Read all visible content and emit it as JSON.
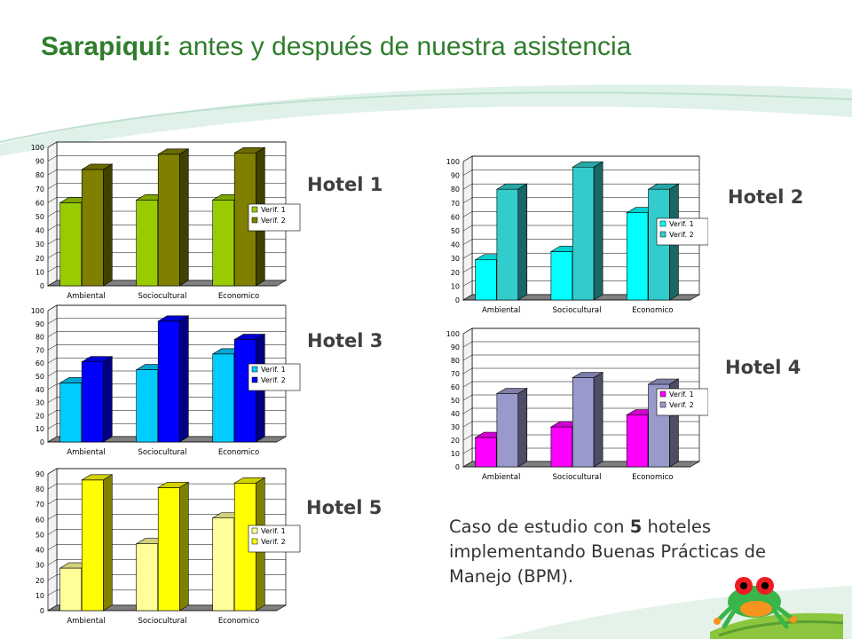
{
  "slide": {
    "title_strong": "Sarapiquí:",
    "title_rest": " antes y después de nuestra asistencia",
    "caption_prefix": "Caso de estudio con ",
    "caption_number": "5",
    "caption_suffix": " hoteles implementando Buenas Prácticas de Manejo (BPM)."
  },
  "chart_data": [
    {
      "id": "hotel1",
      "type": "bar",
      "label": "Hotel 1",
      "categories": [
        "Ambiental",
        "Sociocultural",
        "Economico"
      ],
      "ylim": [
        0,
        100
      ],
      "ystep": 10,
      "grid": true,
      "legend": "right",
      "series": [
        {
          "name": "Verif. 1",
          "values": [
            60,
            62,
            62
          ],
          "color": "#99cc00"
        },
        {
          "name": "Verif. 2",
          "values": [
            84,
            95,
            96
          ],
          "color": "#808000"
        }
      ]
    },
    {
      "id": "hotel2",
      "type": "bar",
      "label": "Hotel 2",
      "categories": [
        "Ambiental",
        "Sociocultural",
        "Economico"
      ],
      "ylim": [
        0,
        100
      ],
      "ystep": 10,
      "grid": true,
      "legend": "right",
      "series": [
        {
          "name": "Verif. 1",
          "values": [
            29,
            35,
            63
          ],
          "color": "#00ffff"
        },
        {
          "name": "Verif. 2",
          "values": [
            80,
            96,
            80
          ],
          "color": "#33cccc"
        }
      ]
    },
    {
      "id": "hotel3",
      "type": "bar",
      "label": "Hotel 3",
      "categories": [
        "Ambiental",
        "Sociocultural",
        "Economico"
      ],
      "ylim": [
        0,
        100
      ],
      "ystep": 10,
      "grid": true,
      "legend": "right",
      "series": [
        {
          "name": "Verif. 1",
          "values": [
            45,
            55,
            67
          ],
          "color": "#00ccff"
        },
        {
          "name": "Verif. 2",
          "values": [
            61,
            92,
            78
          ],
          "color": "#0000ff"
        }
      ]
    },
    {
      "id": "hotel4",
      "type": "bar",
      "label": "Hotel 4",
      "categories": [
        "Ambiental",
        "Sociocultural",
        "Economico"
      ],
      "ylim": [
        0,
        100
      ],
      "ystep": 10,
      "grid": true,
      "legend": "right",
      "series": [
        {
          "name": "Verif. 1",
          "values": [
            22,
            30,
            39
          ],
          "color": "#ff00ff"
        },
        {
          "name": "Verif. 2",
          "values": [
            55,
            67,
            62
          ],
          "color": "#9999cc"
        }
      ]
    },
    {
      "id": "hotel5",
      "type": "bar",
      "label": "Hotel 5",
      "categories": [
        "Ambiental",
        "Sociocultural",
        "Economico"
      ],
      "ylim": [
        0,
        90
      ],
      "ystep": 10,
      "grid": true,
      "legend": "right",
      "series": [
        {
          "name": "Verif. 1",
          "values": [
            28,
            44,
            61
          ],
          "color": "#ffff99"
        },
        {
          "name": "Verif. 2",
          "values": [
            86,
            81,
            84
          ],
          "color": "#ffff00"
        }
      ]
    }
  ]
}
